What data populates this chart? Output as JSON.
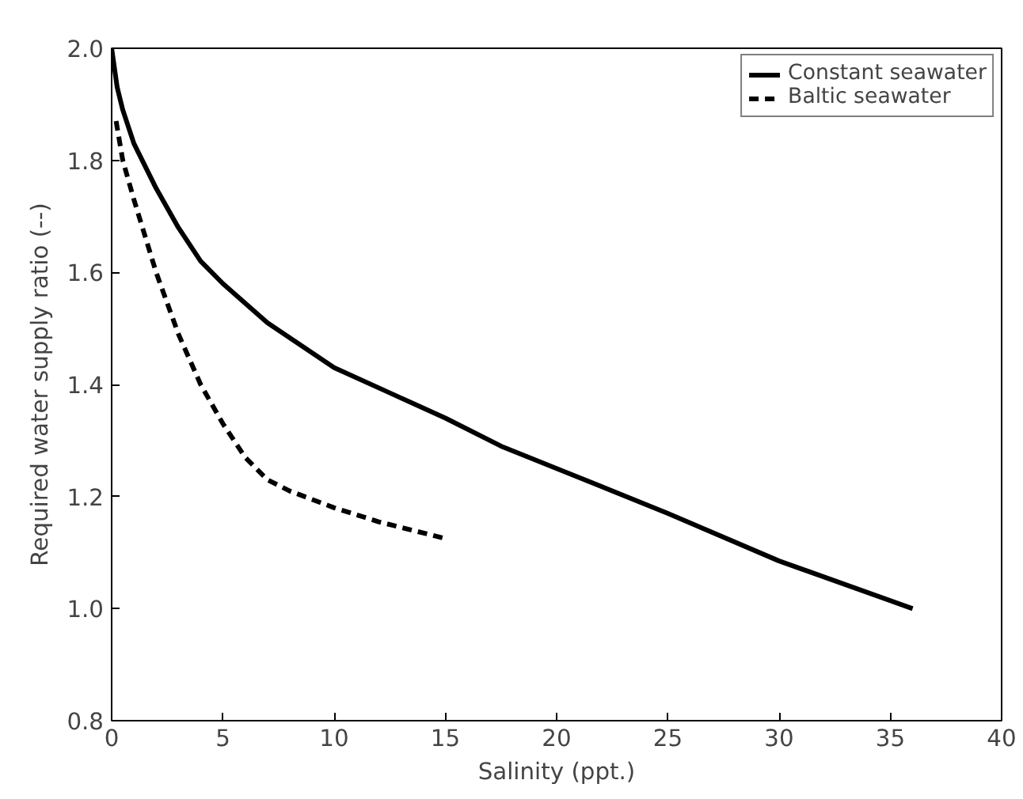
{
  "chart_data": {
    "type": "line",
    "xlabel": "Salinity (ppt.)",
    "ylabel": "Required water supply ratio (--)",
    "xlim": [
      0,
      40
    ],
    "ylim": [
      0.8,
      2.0
    ],
    "xticks": [
      0,
      5,
      10,
      15,
      20,
      25,
      30,
      35,
      40
    ],
    "yticks": [
      {
        "value": 0.8,
        "label": "0.8"
      },
      {
        "value": 1.0,
        "label": "1.0"
      },
      {
        "value": 1.2,
        "label": "1.2"
      },
      {
        "value": 1.4,
        "label": "1.4"
      },
      {
        "value": 1.6,
        "label": "1.6"
      },
      {
        "value": 1.8,
        "label": "1.8"
      },
      {
        "value": 2.0,
        "label": "2.0"
      }
    ],
    "grid": false,
    "legend": "top right",
    "marker": "none",
    "series": [
      {
        "name": "Constant seawater",
        "color": "#000000",
        "line_style": "solid",
        "x": [
          0,
          0.25,
          0.5,
          1,
          2,
          3,
          4,
          5,
          7,
          10,
          12.5,
          15,
          17.5,
          20,
          25,
          30,
          36
        ],
        "values": [
          2.0,
          1.93,
          1.89,
          1.83,
          1.75,
          1.68,
          1.62,
          1.58,
          1.51,
          1.43,
          1.385,
          1.34,
          1.29,
          1.25,
          1.17,
          1.085,
          1.0
        ]
      },
      {
        "name": "Baltic seawater",
        "color": "#000000",
        "line_style": "dashed",
        "x": [
          0.2,
          0.5,
          1,
          2,
          3,
          4,
          5,
          6,
          7,
          8,
          10,
          12,
          15
        ],
        "values": [
          1.87,
          1.8,
          1.73,
          1.6,
          1.49,
          1.4,
          1.33,
          1.27,
          1.23,
          1.21,
          1.18,
          1.155,
          1.125
        ]
      }
    ]
  }
}
